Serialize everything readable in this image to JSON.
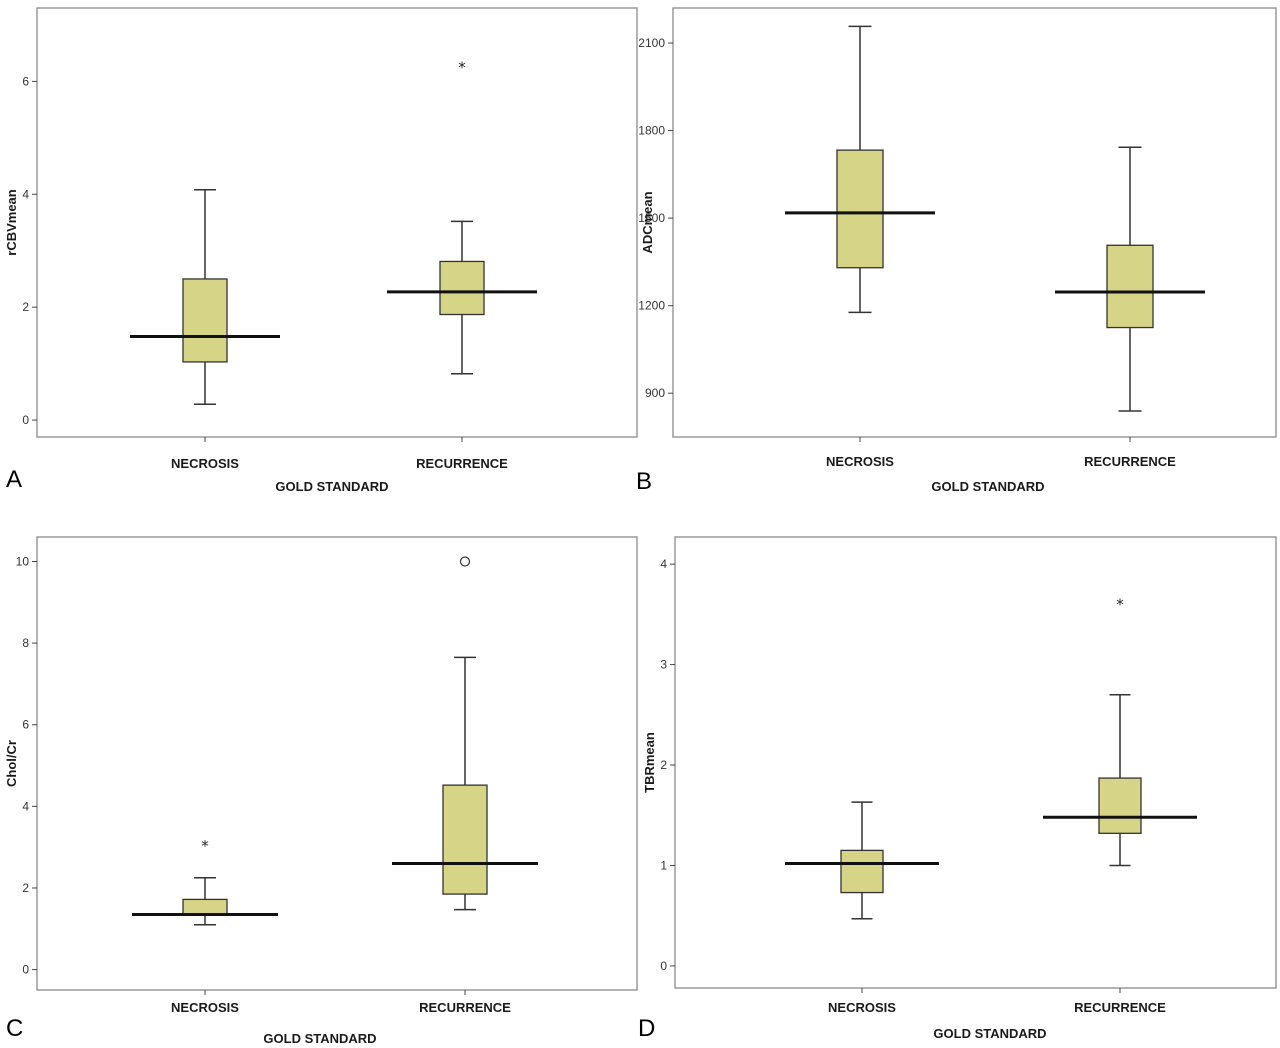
{
  "colors": {
    "box_fill": "#d6d487",
    "frame": "#8a8a8a",
    "median": "#111111",
    "background": "#ffffff"
  },
  "chart_data": [
    {
      "panel": "A",
      "type": "boxplot",
      "xlabel": "GOLD STANDARD",
      "ylabel": "rCBVmean",
      "categories": [
        "NECROSIS",
        "RECURRENCE"
      ],
      "yticks": [
        0,
        2,
        4,
        6
      ],
      "ylim": [
        -0.3,
        7.3
      ],
      "boxes": [
        {
          "category": "NECROSIS",
          "whisker_low": 0.28,
          "q1": 1.03,
          "median": 1.48,
          "q3": 2.5,
          "whisker_high": 4.08
        },
        {
          "category": "RECURRENCE",
          "whisker_low": 0.82,
          "q1": 1.87,
          "median": 2.27,
          "q3": 2.81,
          "whisker_high": 3.52
        }
      ],
      "outliers": [
        {
          "category": "RECURRENCE",
          "value": 6.3,
          "marker": "star"
        }
      ]
    },
    {
      "panel": "B",
      "type": "boxplot",
      "xlabel": "GOLD STANDARD",
      "ylabel": "ADCmean",
      "categories": [
        "NECROSIS",
        "RECURRENCE"
      ],
      "yticks": [
        900,
        1200,
        1500,
        1800,
        2100
      ],
      "ylim": [
        750,
        2220
      ],
      "boxes": [
        {
          "category": "NECROSIS",
          "whisker_low": 1177,
          "q1": 1330,
          "median": 1518,
          "q3": 1733,
          "whisker_high": 2157
        },
        {
          "category": "RECURRENCE",
          "whisker_low": 839,
          "q1": 1125,
          "median": 1247,
          "q3": 1407,
          "whisker_high": 1743
        }
      ],
      "outliers": []
    },
    {
      "panel": "C",
      "type": "boxplot",
      "xlabel": "GOLD STANDARD",
      "ylabel": "Chol/Cr",
      "categories": [
        "NECROSIS",
        "RECURRENCE"
      ],
      "yticks": [
        0,
        2,
        4,
        6,
        8,
        10
      ],
      "ylim": [
        -0.5,
        10.6
      ],
      "boxes": [
        {
          "category": "NECROSIS",
          "whisker_low": 1.1,
          "q1": 1.35,
          "median": 1.35,
          "q3": 1.72,
          "whisker_high": 2.25
        },
        {
          "category": "RECURRENCE",
          "whisker_low": 1.47,
          "q1": 1.85,
          "median": 2.6,
          "q3": 4.52,
          "whisker_high": 7.65
        }
      ],
      "outliers": [
        {
          "category": "NECROSIS",
          "value": 3.1,
          "marker": "star"
        },
        {
          "category": "RECURRENCE",
          "value": 10.0,
          "marker": "circle"
        }
      ]
    },
    {
      "panel": "D",
      "type": "boxplot",
      "xlabel": "GOLD STANDARD",
      "ylabel": "TBRmean",
      "categories": [
        "NECROSIS",
        "RECURRENCE"
      ],
      "yticks": [
        0,
        1,
        2,
        3,
        4
      ],
      "ylim": [
        -0.22,
        4.27
      ],
      "boxes": [
        {
          "category": "NECROSIS",
          "whisker_low": 0.47,
          "q1": 0.73,
          "median": 1.02,
          "q3": 1.15,
          "whisker_high": 1.63
        },
        {
          "category": "RECURRENCE",
          "whisker_low": 1.0,
          "q1": 1.32,
          "median": 1.48,
          "q3": 1.87,
          "whisker_high": 2.7
        }
      ],
      "outliers": [
        {
          "category": "RECURRENCE",
          "value": 3.63,
          "marker": "star"
        }
      ]
    }
  ]
}
